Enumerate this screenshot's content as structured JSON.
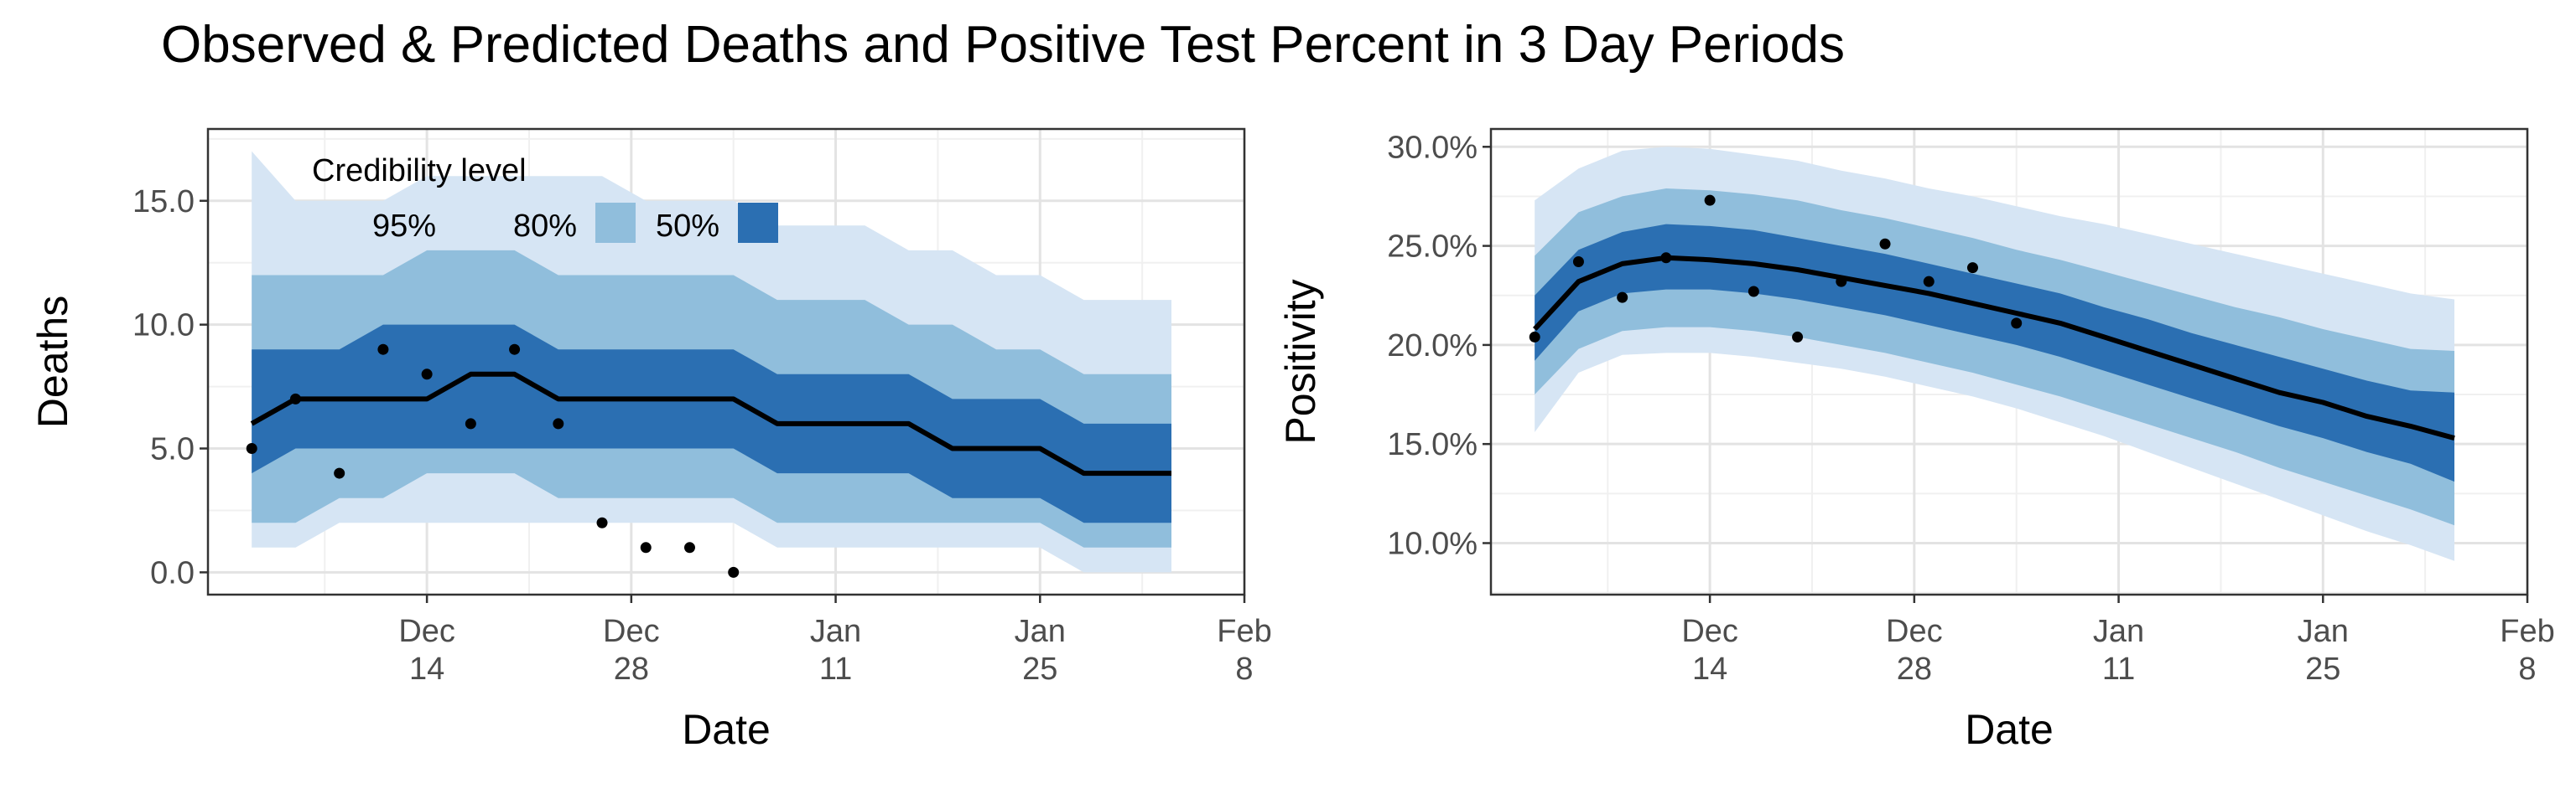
{
  "title": "Observed & Predicted Deaths and Positive Test Percent in 3 Day Periods",
  "legend": {
    "title": "Credibility level",
    "items": [
      {
        "label": "95%",
        "color": "#d6e5f4"
      },
      {
        "label": "80%",
        "color": "#90bedc"
      },
      {
        "label": "50%",
        "color": "#2b6fb2"
      }
    ]
  },
  "chart_data": [
    {
      "type": "area",
      "xlabel": "Date",
      "ylabel": "Deaths",
      "x_tick_labels": [
        {
          "date": "2020-12-14",
          "line1": "Dec",
          "line2": "14"
        },
        {
          "date": "2020-12-28",
          "line1": "Dec",
          "line2": "28"
        },
        {
          "date": "2021-01-11",
          "line1": "Jan",
          "line2": "11"
        },
        {
          "date": "2021-01-25",
          "line1": "Jan",
          "line2": "25"
        },
        {
          "date": "2021-02-08",
          "line1": "Feb",
          "line2": "8"
        }
      ],
      "y_tick_labels": [
        "0.0",
        "5.0",
        "10.0",
        "15.0"
      ],
      "y_ticks": [
        0,
        5,
        10,
        15
      ],
      "xlim": [
        "2020-11-29",
        "2021-02-08"
      ],
      "ylim": [
        -0.9,
        17.9
      ],
      "grid": true,
      "x": [
        "2020-12-02",
        "2020-12-05",
        "2020-12-08",
        "2020-12-11",
        "2020-12-14",
        "2020-12-17",
        "2020-12-20",
        "2020-12-23",
        "2020-12-26",
        "2020-12-29",
        "2021-01-01",
        "2021-01-04",
        "2021-01-07",
        "2021-01-10",
        "2021-01-13",
        "2021-01-16",
        "2021-01-19",
        "2021-01-22",
        "2021-01-25",
        "2021-01-28",
        "2021-01-31",
        "2021-02-03"
      ],
      "median": [
        6,
        7,
        7,
        7,
        7,
        8,
        8,
        7,
        7,
        7,
        7,
        7,
        6,
        6,
        6,
        6,
        5,
        5,
        5,
        4,
        4,
        4
      ],
      "band_95_low": [
        1,
        1,
        2,
        2,
        2,
        2,
        2,
        2,
        2,
        2,
        2,
        2,
        1,
        1,
        1,
        1,
        1,
        1,
        1,
        0,
        0,
        0
      ],
      "band_95_high": [
        17,
        15,
        15,
        15,
        16,
        16,
        16,
        16,
        16,
        15,
        15,
        15,
        14,
        14,
        14,
        13,
        13,
        12,
        12,
        11,
        11,
        11
      ],
      "band_80_low": [
        2,
        2,
        3,
        3,
        4,
        4,
        4,
        3,
        3,
        3,
        3,
        3,
        2,
        2,
        2,
        2,
        2,
        2,
        2,
        1,
        1,
        1
      ],
      "band_80_high": [
        12,
        12,
        12,
        12,
        13,
        13,
        13,
        12,
        12,
        12,
        12,
        12,
        11,
        11,
        11,
        10,
        10,
        9,
        9,
        8,
        8,
        8
      ],
      "band_50_low": [
        4,
        5,
        5,
        5,
        5,
        5,
        5,
        5,
        5,
        5,
        5,
        5,
        4,
        4,
        4,
        4,
        3,
        3,
        3,
        2,
        2,
        2
      ],
      "band_50_high": [
        9,
        9,
        9,
        10,
        10,
        10,
        10,
        9,
        9,
        9,
        9,
        9,
        8,
        8,
        8,
        8,
        7,
        7,
        7,
        6,
        6,
        6
      ],
      "observed": [
        {
          "x": "2020-12-02",
          "y": 5
        },
        {
          "x": "2020-12-05",
          "y": 7
        },
        {
          "x": "2020-12-08",
          "y": 4
        },
        {
          "x": "2020-12-11",
          "y": 9
        },
        {
          "x": "2020-12-14",
          "y": 8
        },
        {
          "x": "2020-12-17",
          "y": 6
        },
        {
          "x": "2020-12-20",
          "y": 9
        },
        {
          "x": "2020-12-23",
          "y": 6
        },
        {
          "x": "2020-12-26",
          "y": 2
        },
        {
          "x": "2020-12-29",
          "y": 1
        },
        {
          "x": "2021-01-01",
          "y": 1
        },
        {
          "x": "2021-01-04",
          "y": 0
        }
      ]
    },
    {
      "type": "area",
      "xlabel": "Date",
      "ylabel": "Positivity",
      "x_tick_labels": [
        {
          "date": "2020-12-14",
          "line1": "Dec",
          "line2": "14"
        },
        {
          "date": "2020-12-28",
          "line1": "Dec",
          "line2": "28"
        },
        {
          "date": "2021-01-11",
          "line1": "Jan",
          "line2": "11"
        },
        {
          "date": "2021-01-25",
          "line1": "Jan",
          "line2": "25"
        },
        {
          "date": "2021-02-08",
          "line1": "Feb",
          "line2": "8"
        }
      ],
      "y_tick_labels": [
        "10.0%",
        "15.0%",
        "20.0%",
        "25.0%",
        "30.0%"
      ],
      "y_ticks": [
        10,
        15,
        20,
        25,
        30
      ],
      "xlim": [
        "2020-11-29",
        "2021-02-08"
      ],
      "ylim": [
        7.4,
        30.9
      ],
      "grid": true,
      "x": [
        "2020-12-02",
        "2020-12-05",
        "2020-12-08",
        "2020-12-11",
        "2020-12-14",
        "2020-12-17",
        "2020-12-20",
        "2020-12-23",
        "2020-12-26",
        "2020-12-29",
        "2021-01-01",
        "2021-01-04",
        "2021-01-07",
        "2021-01-10",
        "2021-01-13",
        "2021-01-16",
        "2021-01-19",
        "2021-01-22",
        "2021-01-25",
        "2021-01-28",
        "2021-01-31",
        "2021-02-03"
      ],
      "median": [
        20.8,
        23.2,
        24.1,
        24.4,
        24.3,
        24.1,
        23.8,
        23.4,
        23.0,
        22.6,
        22.1,
        21.6,
        21.1,
        20.4,
        19.7,
        19.0,
        18.3,
        17.6,
        17.1,
        16.4,
        15.9,
        15.3
      ],
      "band_95_low": [
        15.6,
        18.6,
        19.5,
        19.6,
        19.6,
        19.4,
        19.1,
        18.8,
        18.4,
        17.9,
        17.4,
        16.8,
        16.1,
        15.4,
        14.6,
        13.8,
        13.0,
        12.2,
        11.4,
        10.6,
        9.9,
        9.1
      ],
      "band_95_high": [
        27.3,
        28.9,
        29.8,
        30.0,
        29.9,
        29.6,
        29.3,
        28.8,
        28.4,
        27.9,
        27.5,
        27.0,
        26.5,
        26.1,
        25.6,
        25.1,
        24.6,
        24.1,
        23.6,
        23.1,
        22.6,
        22.3
      ],
      "band_80_low": [
        17.5,
        19.8,
        20.7,
        20.9,
        20.9,
        20.7,
        20.4,
        20.0,
        19.6,
        19.1,
        18.6,
        18.0,
        17.4,
        16.7,
        16.0,
        15.3,
        14.6,
        13.8,
        13.1,
        12.4,
        11.7,
        10.9
      ],
      "band_80_high": [
        24.5,
        26.7,
        27.5,
        27.9,
        27.8,
        27.6,
        27.3,
        26.8,
        26.4,
        25.9,
        25.4,
        24.8,
        24.3,
        23.7,
        23.1,
        22.5,
        21.9,
        21.4,
        20.8,
        20.3,
        19.8,
        19.7
      ],
      "band_50_low": [
        19.2,
        21.7,
        22.6,
        22.8,
        22.8,
        22.6,
        22.3,
        21.9,
        21.5,
        21.0,
        20.5,
        20.0,
        19.4,
        18.7,
        18.0,
        17.3,
        16.6,
        15.9,
        15.3,
        14.6,
        14.0,
        13.1
      ],
      "band_50_high": [
        22.5,
        24.8,
        25.7,
        26.1,
        26.0,
        25.8,
        25.4,
        25.0,
        24.6,
        24.1,
        23.6,
        23.1,
        22.6,
        21.9,
        21.3,
        20.6,
        20.0,
        19.4,
        18.8,
        18.2,
        17.7,
        17.6
      ],
      "observed": [
        {
          "x": "2020-12-02",
          "y": 20.4
        },
        {
          "x": "2020-12-05",
          "y": 24.2
        },
        {
          "x": "2020-12-08",
          "y": 22.4
        },
        {
          "x": "2020-12-11",
          "y": 24.4
        },
        {
          "x": "2020-12-14",
          "y": 27.3
        },
        {
          "x": "2020-12-17",
          "y": 22.7
        },
        {
          "x": "2020-12-20",
          "y": 20.4
        },
        {
          "x": "2020-12-23",
          "y": 23.2
        },
        {
          "x": "2020-12-26",
          "y": 25.1
        },
        {
          "x": "2020-12-29",
          "y": 23.2
        },
        {
          "x": "2021-01-01",
          "y": 23.9
        },
        {
          "x": "2021-01-04",
          "y": 21.1
        }
      ]
    }
  ]
}
